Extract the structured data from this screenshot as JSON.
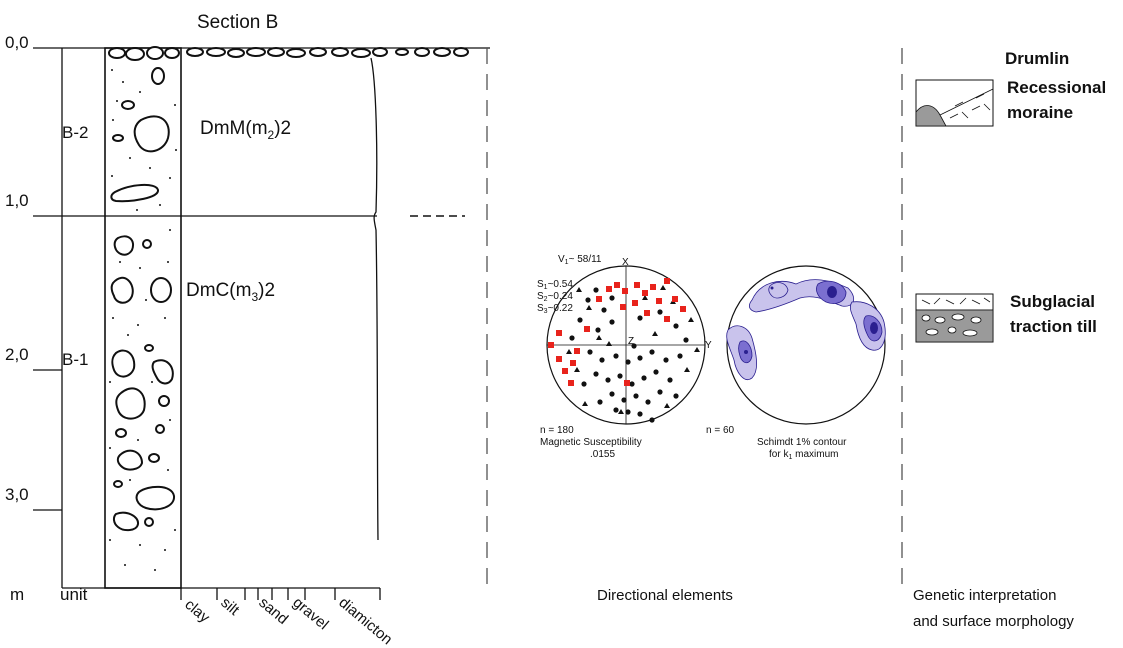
{
  "section_title": "Section B",
  "depth_ticks": [
    "0,0",
    "1,0",
    "2,0",
    "3,0"
  ],
  "depth_unit": "m",
  "unit_header": "unit",
  "units": [
    "B-2",
    "B-1"
  ],
  "facies": {
    "upper": {
      "base": "DmM(m",
      "sub": "2",
      "tail": ")2"
    },
    "lower": {
      "base": "DmC(m",
      "sub": "3",
      "tail": ")2"
    }
  },
  "grain_size_labels": [
    "clay",
    "silt",
    "sand",
    "gravel",
    "diamicton"
  ],
  "directional": {
    "header": "Directional elements",
    "stereonet_left": {
      "v1": {
        "base": "V",
        "sub": "1",
        "tail": "~ 58/11"
      },
      "eigen": [
        {
          "base": "S",
          "sub": "1",
          "tail": "~0.54"
        },
        {
          "base": "S",
          "sub": "2",
          "tail": "~0.24"
        },
        {
          "base": "S",
          "sub": "3",
          "tail": "~0.22"
        }
      ],
      "axis_x": "X",
      "axis_y": "Y",
      "axis_z": "Z",
      "n": "n = 180",
      "caption1": "Magnetic Susceptibility",
      "caption2": ".0155",
      "colors": {
        "red": "#e8231c",
        "black": "#111111"
      }
    },
    "stereonet_right": {
      "n": "n = 60",
      "caption1": "Schimdt 1% contour",
      "caption2": {
        "base": "for k",
        "sub": "1",
        "tail": " maximum"
      },
      "colors": {
        "light": "#c9c3ec",
        "mid": "#7b6fd0",
        "dark": "#2a1f8f"
      }
    }
  },
  "genetic": {
    "header_line1": "Genetic interpretation",
    "header_line2": "and surface morphology",
    "drumlin": "Drumlin",
    "recessional_1": "Recessional",
    "recessional_2": "moraine",
    "subglacial_1": "Subglacial",
    "subglacial_2": "traction till"
  }
}
